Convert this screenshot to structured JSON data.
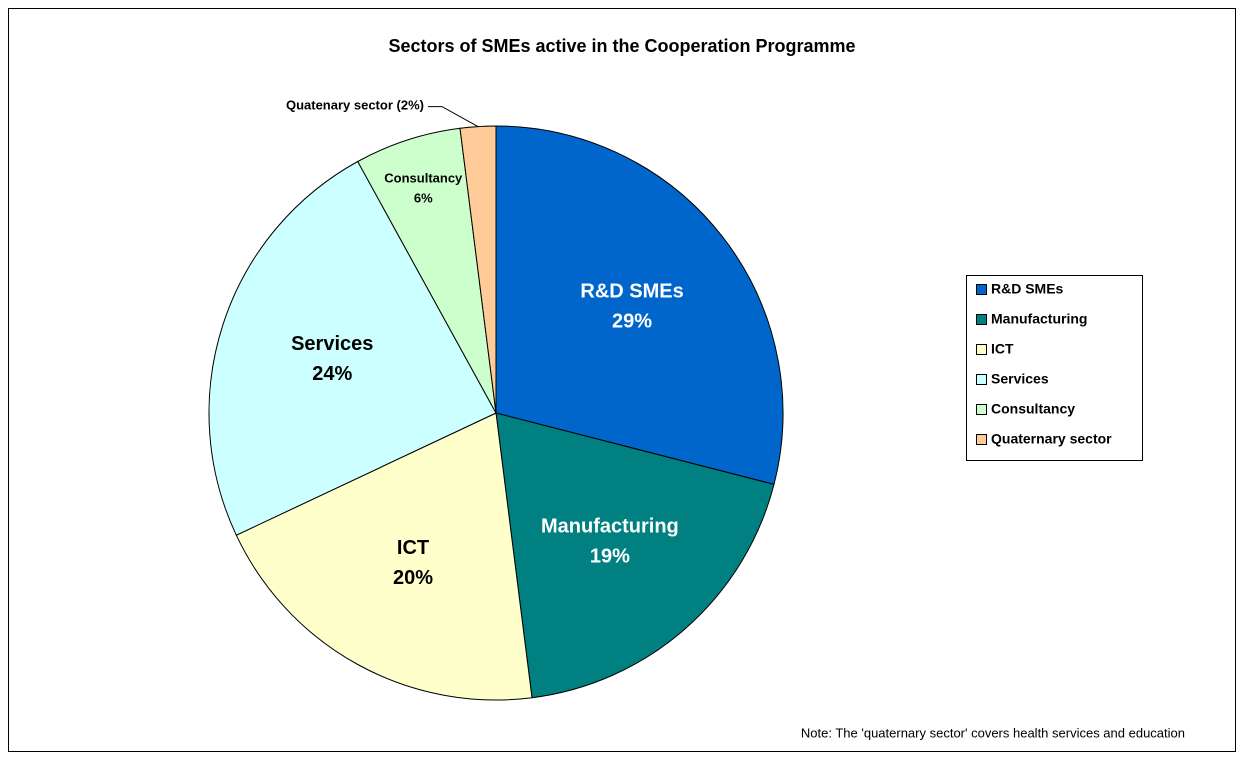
{
  "chart_data": {
    "type": "pie",
    "title": "Sectors of SMEs active in the Cooperation Programme",
    "categories": [
      "R&D SMEs",
      "Manufacturing",
      "ICT",
      "Services",
      "Consultancy",
      "Quaternary sector"
    ],
    "slice_labels": [
      "R&D SMEs",
      "Manufacturing",
      "ICT",
      "Services",
      "Consultancy",
      "Quatenary sector"
    ],
    "values": [
      29,
      19,
      20,
      24,
      6,
      2
    ],
    "value_labels": [
      "29%",
      "19%",
      "20%",
      "24%",
      "6%",
      "(2%)"
    ],
    "colors": [
      "#0066cc",
      "#008080",
      "#ffffcc",
      "#ccffff",
      "#ccffcc",
      "#ffcc99"
    ],
    "legend": "right",
    "note": "Note: The 'quaternary sector' covers health services and education"
  }
}
